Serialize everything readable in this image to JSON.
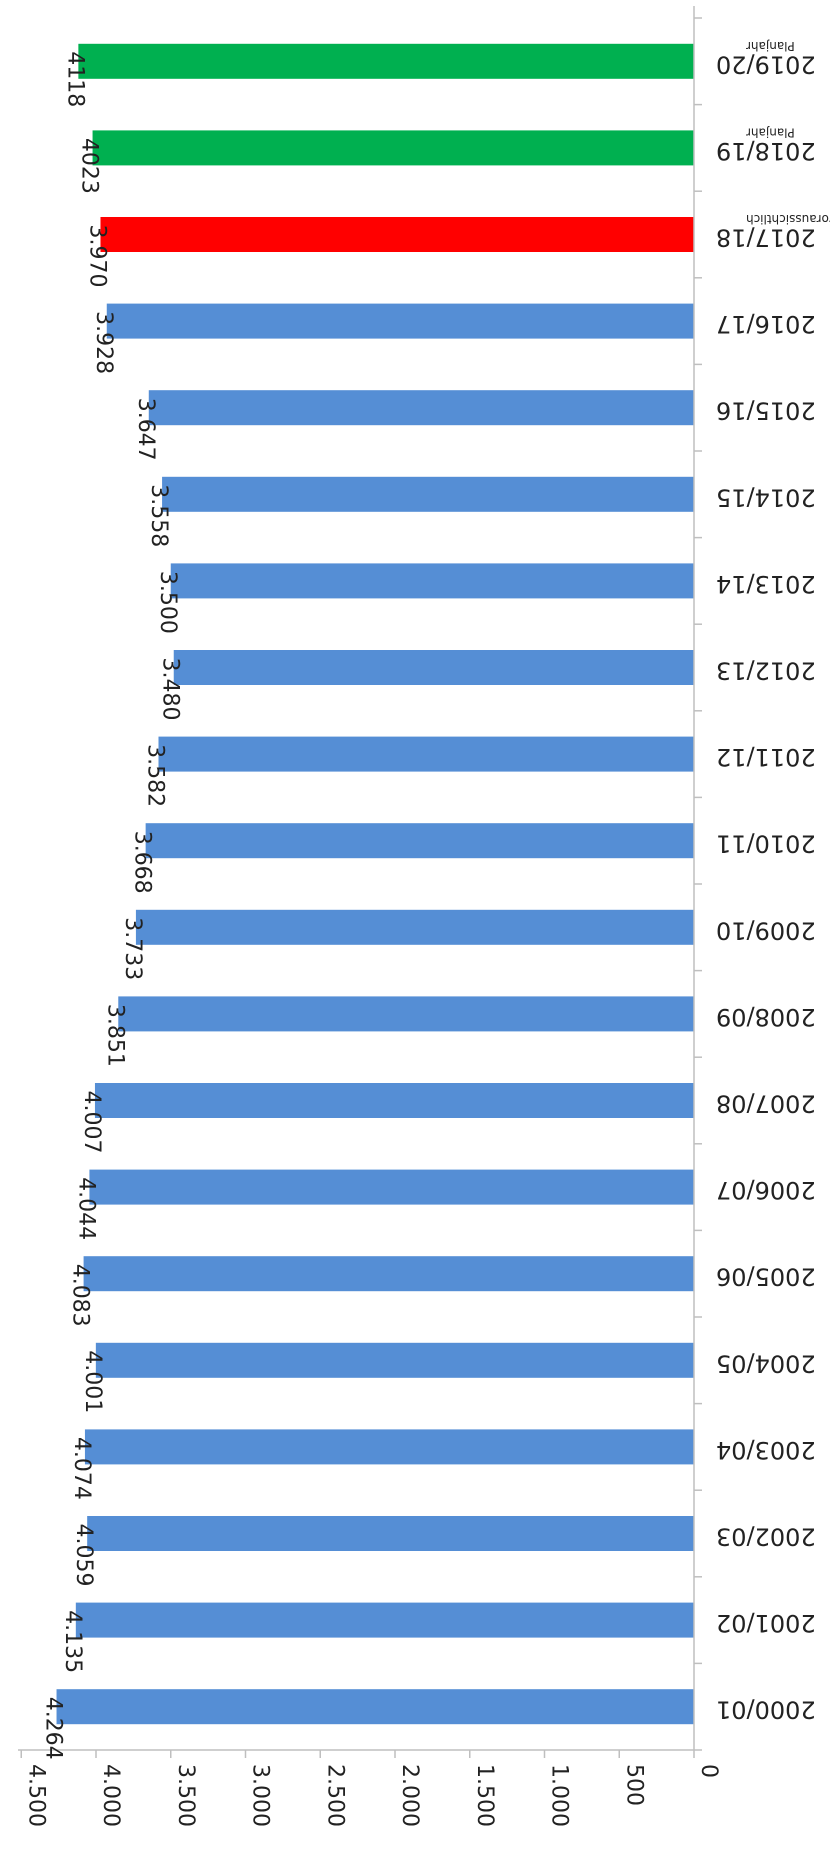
{
  "chart_data": {
    "type": "bar",
    "orientation": "horizontal",
    "title": "",
    "xlabel": "",
    "ylabel": "",
    "categories": [
      "2000/01",
      "2001/02",
      "2002/03",
      "2003/04",
      "2004/05",
      "2005/06",
      "2006/07",
      "2007/08",
      "2008/09",
      "2009/10",
      "2010/11",
      "2011/12",
      "2012/13",
      "2013/14",
      "2014/15",
      "2015/16",
      "2016/17",
      "2017/18",
      "2018/19",
      "2019/20"
    ],
    "category_notes": [
      "",
      "",
      "",
      "",
      "",
      "",
      "",
      "",
      "",
      "",
      "",
      "",
      "",
      "",
      "",
      "",
      "",
      "voraussichtlich",
      "Planjahr",
      "Planjahr"
    ],
    "values": [
      4264,
      4135,
      4059,
      4074,
      4001,
      4083,
      4044,
      4007,
      3851,
      3733,
      3668,
      3582,
      3480,
      3500,
      3558,
      3647,
      3928,
      3970,
      4023,
      4118
    ],
    "data_labels": [
      "4.264",
      "4.135",
      "4.059",
      "4.074",
      "4.001",
      "4.083",
      "4.044",
      "4.007",
      "3.851",
      "3.733",
      "3.668",
      "3.582",
      "3.480",
      "3.500",
      "3.558",
      "3.647",
      "3.928",
      "3.970",
      "4023",
      "4118"
    ],
    "bar_colors": [
      "#558ed5",
      "#558ed5",
      "#558ed5",
      "#558ed5",
      "#558ed5",
      "#558ed5",
      "#558ed5",
      "#558ed5",
      "#558ed5",
      "#558ed5",
      "#558ed5",
      "#558ed5",
      "#558ed5",
      "#558ed5",
      "#558ed5",
      "#558ed5",
      "#558ed5",
      "#ff0000",
      "#00b050",
      "#00b050"
    ],
    "value_axis": {
      "min": 0,
      "max": 4500,
      "ticks": [
        0,
        500,
        1000,
        1500,
        2000,
        2500,
        3000,
        3500,
        4000,
        4500
      ],
      "tick_labels": [
        "0",
        "500",
        "1.000",
        "1.500",
        "2.000",
        "2.500",
        "3.000",
        "3.500",
        "4.000",
        "4.500"
      ]
    },
    "grid": false,
    "legend": "none"
  }
}
